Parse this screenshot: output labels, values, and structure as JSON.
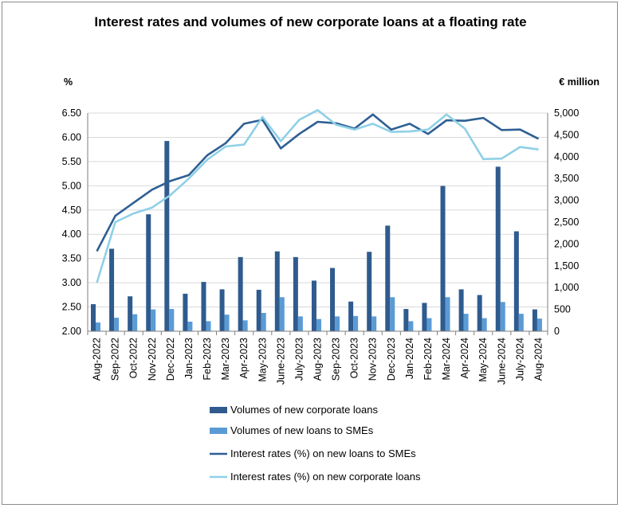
{
  "chart_data": {
    "type": "bar",
    "title": "Interest rates and volumes of new corporate loans at a  floating rate",
    "ylabel_left": "%",
    "ylabel_right": "€ million",
    "ylim_left": [
      2.0,
      6.5
    ],
    "ylim_right": [
      0,
      5000
    ],
    "yticks_left": [
      "6.50",
      "6.00",
      "5.50",
      "5.00",
      "4.50",
      "4.00",
      "3.50",
      "3.00",
      "2.50",
      "2.00"
    ],
    "yticks_left_values": [
      6.5,
      6.0,
      5.5,
      5.0,
      4.5,
      4.0,
      3.5,
      3.0,
      2.5,
      2.0
    ],
    "yticks_right": [
      "5,000",
      "4,500",
      "4,000",
      "3,500",
      "3,000",
      "2,500",
      "2,000",
      "1,500",
      "1,000",
      "500",
      "0"
    ],
    "yticks_right_values": [
      5000,
      4500,
      4000,
      3500,
      3000,
      2500,
      2000,
      1500,
      1000,
      500,
      0
    ],
    "grid": true,
    "legend_position": "bottom",
    "categories": [
      "Aug-2022",
      "Sep-2022",
      "Oct-2022",
      "Nov-2022",
      "Dec-2022",
      "Jan-2023",
      "Feb-2023",
      "Mar-2023",
      "Apr-2023",
      "May-2023",
      "June-2023",
      "July-2023",
      "Aug-2023",
      "Sep-2023",
      "Oct-2023",
      "Nov-2023",
      "Dec-2023",
      "Jan-2024",
      "Feb-2024",
      "Mar-2024",
      "Apr-2024",
      "May-2024",
      "June-2024",
      "July-2024",
      "Aug-2024"
    ],
    "series": [
      {
        "name": "Volumes of new corporate loans",
        "kind": "bar",
        "axis": "right",
        "color": "#2f5b8e",
        "values": [
          620,
          1890,
          800,
          2680,
          4360,
          860,
          1130,
          960,
          1700,
          950,
          1830,
          1700,
          1160,
          1450,
          680,
          1820,
          2420,
          510,
          650,
          3330,
          960,
          830,
          3770,
          2290,
          500
        ]
      },
      {
        "name": "Volumes of new loans to SMEs",
        "kind": "bar",
        "axis": "right",
        "color": "#5b9bd5",
        "values": [
          200,
          310,
          390,
          500,
          510,
          220,
          230,
          380,
          250,
          420,
          780,
          340,
          280,
          340,
          350,
          340,
          780,
          230,
          300,
          780,
          400,
          300,
          670,
          400,
          290
        ]
      },
      {
        "name": "Interest rates (%) on new loans to SMEs",
        "kind": "line",
        "axis": "left",
        "color": "#2d5f94",
        "values": [
          3.65,
          4.38,
          4.65,
          4.92,
          5.1,
          5.22,
          5.63,
          5.88,
          6.28,
          6.36,
          5.77,
          6.07,
          6.32,
          6.29,
          6.18,
          6.47,
          6.16,
          6.28,
          6.07,
          6.35,
          6.34,
          6.4,
          6.15,
          6.16,
          5.97
        ]
      },
      {
        "name": "Interest rates (%) on new corporate loans",
        "kind": "line",
        "axis": "left",
        "color": "#8fd0e6",
        "values": [
          3.0,
          4.25,
          4.43,
          4.55,
          4.81,
          5.15,
          5.54,
          5.81,
          5.85,
          6.42,
          5.92,
          6.36,
          6.56,
          6.26,
          6.16,
          6.28,
          6.11,
          6.12,
          6.16,
          6.47,
          6.18,
          5.55,
          5.56,
          5.8,
          5.75
        ]
      }
    ]
  }
}
